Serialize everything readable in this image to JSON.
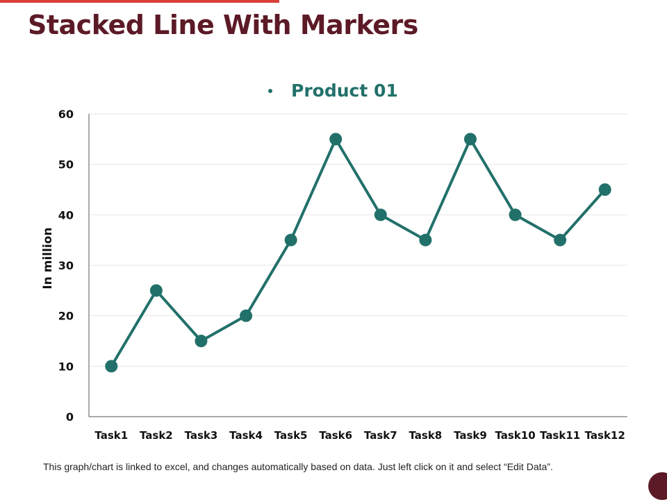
{
  "slide": {
    "title": "Stacked Line With Markers",
    "footnote": "This graph/chart is linked to excel, and changes automatically based on data. Just left click on it and select “Edit Data”."
  },
  "colors": {
    "title": "#5c1a26",
    "accent_bar": "#d9403c",
    "series": "#22706a",
    "corner_circle": "#5c1a26"
  },
  "chart_data": {
    "type": "line",
    "title": "",
    "xlabel": "",
    "ylabel": "In million",
    "ylim": [
      0,
      60
    ],
    "yticks": [
      0,
      10,
      20,
      30,
      40,
      50,
      60
    ],
    "grid": true,
    "legend_position": "top-center",
    "categories": [
      "Task1",
      "Task2",
      "Task3",
      "Task4",
      "Task5",
      "Task6",
      "Task7",
      "Task8",
      "Task9",
      "Task10",
      "Task11",
      "Task12"
    ],
    "series": [
      {
        "name": "Product 01",
        "values": [
          10,
          25,
          15,
          20,
          35,
          55,
          40,
          35,
          55,
          40,
          35,
          45
        ]
      }
    ]
  }
}
